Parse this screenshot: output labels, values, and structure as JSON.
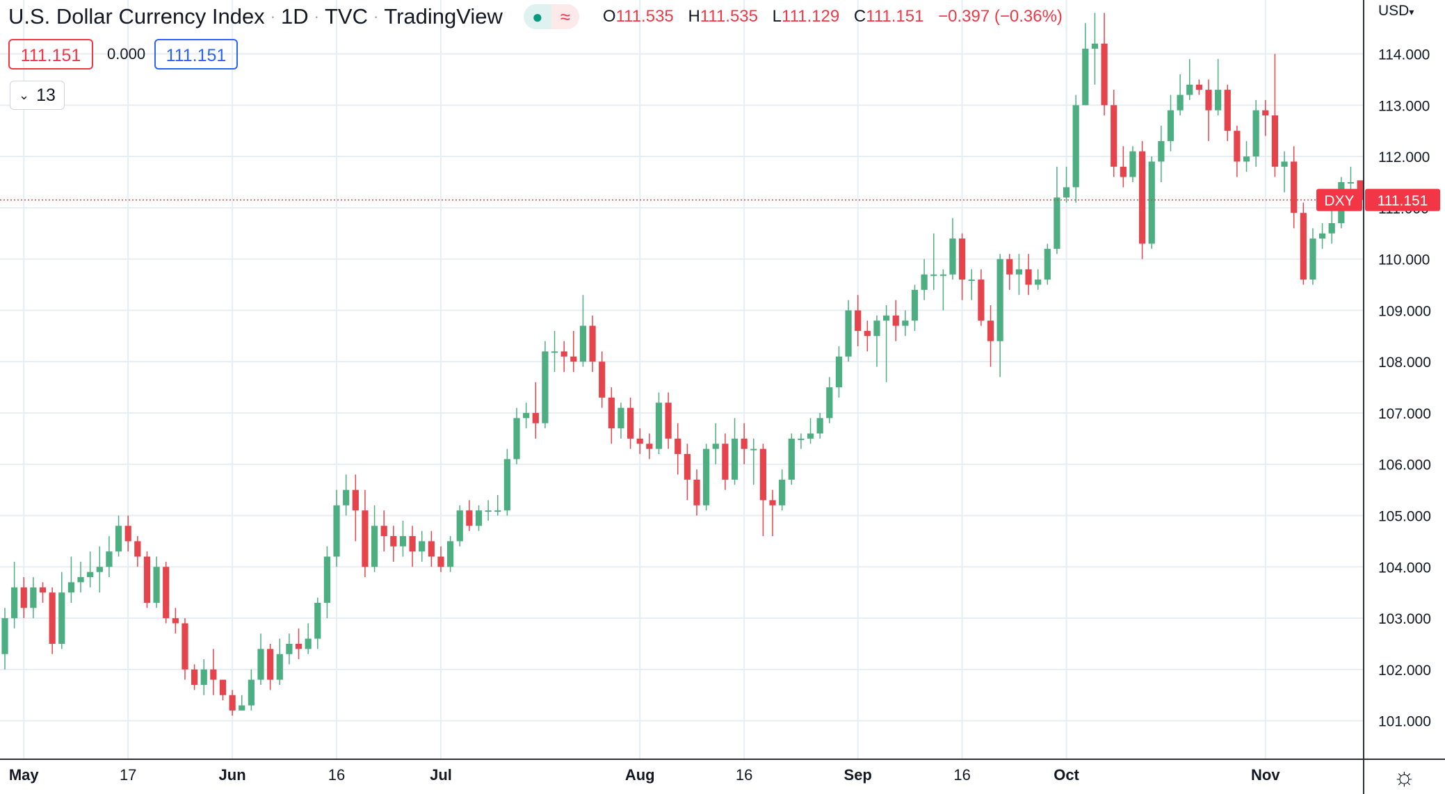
{
  "header": {
    "title": "U.S. Dollar Currency Index",
    "interval": "1D",
    "exchange": "TVC",
    "source": "TradingView",
    "live_icon": "●",
    "delayed_icon": "≈",
    "open_label": "O",
    "open": "111.535",
    "high_label": "H",
    "high": "111.535",
    "low_label": "L",
    "low": "111.129",
    "close_label": "C",
    "close": "111.151",
    "change": "−0.397 (−0.36%)"
  },
  "trade": {
    "sell": "111.151",
    "spread": "0.000",
    "buy": "111.151"
  },
  "indicators": {
    "chevron_icon": "chevron-down-icon",
    "count": "13"
  },
  "axis": {
    "currency_label": "USD",
    "settings_icon": "gear-icon"
  },
  "colors": {
    "up": "#4cae81",
    "down": "#e5444d",
    "grid": "#e6edf3",
    "last_price": "#f23645"
  },
  "chart_data": {
    "type": "candlestick",
    "title": "U.S. Dollar Currency Index · 1D · TVC",
    "symbol_label": "DXY",
    "last_price": "111.151",
    "y_ticks": [
      "101.000",
      "102.000",
      "103.000",
      "104.000",
      "105.000",
      "106.000",
      "107.000",
      "108.000",
      "109.000",
      "110.000",
      "111.000",
      "112.000",
      "113.000",
      "114.000"
    ],
    "ylim": [
      100.25,
      115.05
    ],
    "x_ticks": [
      {
        "label": "May",
        "idx": 2
      },
      {
        "label": "17",
        "idx": 13
      },
      {
        "label": "Jun",
        "idx": 24
      },
      {
        "label": "16",
        "idx": 35
      },
      {
        "label": "Jul",
        "idx": 46
      },
      {
        "label": "Aug",
        "idx": 67
      },
      {
        "label": "16",
        "idx": 78
      },
      {
        "label": "Sep",
        "idx": 90
      },
      {
        "label": "16",
        "idx": 101
      },
      {
        "label": "Oct",
        "idx": 112
      },
      {
        "label": "Nov",
        "idx": 133
      }
    ],
    "candles": [
      [
        102.3,
        103.0,
        103.2,
        102.0
      ],
      [
        103.0,
        103.6,
        104.1,
        102.8
      ],
      [
        103.6,
        103.2,
        103.8,
        103.0
      ],
      [
        103.2,
        103.6,
        103.8,
        103.0
      ],
      [
        103.6,
        103.5,
        103.7,
        103.3
      ],
      [
        103.5,
        102.5,
        103.6,
        102.3
      ],
      [
        102.5,
        103.5,
        103.9,
        102.4
      ],
      [
        103.5,
        103.7,
        104.2,
        103.3
      ],
      [
        103.7,
        103.8,
        104.1,
        103.5
      ],
      [
        103.8,
        103.9,
        104.3,
        103.6
      ],
      [
        103.9,
        104.0,
        104.4,
        103.5
      ],
      [
        104.0,
        104.3,
        104.6,
        103.8
      ],
      [
        104.3,
        104.8,
        105.0,
        104.2
      ],
      [
        104.8,
        104.5,
        105.0,
        104.3
      ],
      [
        104.5,
        104.2,
        104.6,
        104.0
      ],
      [
        104.2,
        103.3,
        104.3,
        103.2
      ],
      [
        103.3,
        104.0,
        104.2,
        103.2
      ],
      [
        104.0,
        103.0,
        104.1,
        102.9
      ],
      [
        103.0,
        102.9,
        103.2,
        102.7
      ],
      [
        102.9,
        102.0,
        103.0,
        101.8
      ],
      [
        102.0,
        101.7,
        102.1,
        101.6
      ],
      [
        101.7,
        102.0,
        102.2,
        101.5
      ],
      [
        102.0,
        101.8,
        102.4,
        101.5
      ],
      [
        101.8,
        101.5,
        101.8,
        101.4
      ],
      [
        101.5,
        101.2,
        101.6,
        101.1
      ],
      [
        101.2,
        101.3,
        101.5,
        101.2
      ],
      [
        101.3,
        101.8,
        102.0,
        101.2
      ],
      [
        101.8,
        102.4,
        102.7,
        101.7
      ],
      [
        102.4,
        101.8,
        102.5,
        101.6
      ],
      [
        101.8,
        102.3,
        102.6,
        101.7
      ],
      [
        102.3,
        102.5,
        102.7,
        102.1
      ],
      [
        102.5,
        102.4,
        102.8,
        102.2
      ],
      [
        102.4,
        102.6,
        102.9,
        102.3
      ],
      [
        102.6,
        103.3,
        103.4,
        102.4
      ],
      [
        103.3,
        104.2,
        104.4,
        103.0
      ],
      [
        104.2,
        105.2,
        105.5,
        104.0
      ],
      [
        105.2,
        105.5,
        105.8,
        105.0
      ],
      [
        105.5,
        105.1,
        105.8,
        104.5
      ],
      [
        105.1,
        104.0,
        105.5,
        103.8
      ],
      [
        104.0,
        104.8,
        105.2,
        103.9
      ],
      [
        104.8,
        104.6,
        105.1,
        104.3
      ],
      [
        104.6,
        104.4,
        104.8,
        104.1
      ],
      [
        104.4,
        104.6,
        104.9,
        104.2
      ],
      [
        104.6,
        104.3,
        104.8,
        104.0
      ],
      [
        104.3,
        104.5,
        104.7,
        104.1
      ],
      [
        104.5,
        104.2,
        104.7,
        104.0
      ],
      [
        104.2,
        104.0,
        104.4,
        103.9
      ],
      [
        104.0,
        104.5,
        104.6,
        103.9
      ],
      [
        104.5,
        105.1,
        105.2,
        104.4
      ],
      [
        105.1,
        104.8,
        105.3,
        104.7
      ],
      [
        104.8,
        105.1,
        105.2,
        104.7
      ],
      [
        105.1,
        105.1,
        105.3,
        104.9
      ],
      [
        105.1,
        105.1,
        105.4,
        105.0
      ],
      [
        105.1,
        106.1,
        106.3,
        105.0
      ],
      [
        106.1,
        106.9,
        107.1,
        106.0
      ],
      [
        106.9,
        107.0,
        107.2,
        106.7
      ],
      [
        107.0,
        106.8,
        107.6,
        106.5
      ],
      [
        106.8,
        108.2,
        108.4,
        106.7
      ],
      [
        108.2,
        108.2,
        108.6,
        107.8
      ],
      [
        108.2,
        108.1,
        108.4,
        107.8
      ],
      [
        108.1,
        108.0,
        108.6,
        107.8
      ],
      [
        108.0,
        108.7,
        109.3,
        107.9
      ],
      [
        108.7,
        108.0,
        108.9,
        107.8
      ],
      [
        108.0,
        107.3,
        108.2,
        107.1
      ],
      [
        107.3,
        106.7,
        107.5,
        106.4
      ],
      [
        106.7,
        107.1,
        107.2,
        106.5
      ],
      [
        107.1,
        106.5,
        107.3,
        106.3
      ],
      [
        106.5,
        106.4,
        106.7,
        106.2
      ],
      [
        106.4,
        106.3,
        106.6,
        106.1
      ],
      [
        106.3,
        107.2,
        107.4,
        106.2
      ],
      [
        107.2,
        106.5,
        107.4,
        106.3
      ],
      [
        106.5,
        106.2,
        106.8,
        105.8
      ],
      [
        106.2,
        105.7,
        106.4,
        105.3
      ],
      [
        105.7,
        105.2,
        105.9,
        105.0
      ],
      [
        105.2,
        106.3,
        106.4,
        105.1
      ],
      [
        106.3,
        106.4,
        106.8,
        106.0
      ],
      [
        106.4,
        105.7,
        106.6,
        105.5
      ],
      [
        105.7,
        106.5,
        106.9,
        105.6
      ],
      [
        106.5,
        106.3,
        106.8,
        106.0
      ],
      [
        106.3,
        106.3,
        106.5,
        105.6
      ],
      [
        106.3,
        105.3,
        106.4,
        104.6
      ],
      [
        105.3,
        105.2,
        105.5,
        104.6
      ],
      [
        105.2,
        105.7,
        105.9,
        105.1
      ],
      [
        105.7,
        106.5,
        106.6,
        105.6
      ],
      [
        106.5,
        106.5,
        106.6,
        106.3
      ],
      [
        106.5,
        106.6,
        106.9,
        106.4
      ],
      [
        106.6,
        106.9,
        107.0,
        106.5
      ],
      [
        106.9,
        107.5,
        107.7,
        106.8
      ],
      [
        107.5,
        108.1,
        108.3,
        107.3
      ],
      [
        108.1,
        109.0,
        109.2,
        108.0
      ],
      [
        109.0,
        108.6,
        109.3,
        108.3
      ],
      [
        108.6,
        108.5,
        108.8,
        108.2
      ],
      [
        108.5,
        108.8,
        108.9,
        107.9
      ],
      [
        108.8,
        108.9,
        109.1,
        107.6
      ],
      [
        108.9,
        108.7,
        109.2,
        108.4
      ],
      [
        108.7,
        108.8,
        109.0,
        108.5
      ],
      [
        108.8,
        109.4,
        109.5,
        108.6
      ],
      [
        109.4,
        109.7,
        110.0,
        109.2
      ],
      [
        109.7,
        109.7,
        110.5,
        109.4
      ],
      [
        109.7,
        109.7,
        109.8,
        109.0
      ],
      [
        109.7,
        110.4,
        110.8,
        109.6
      ],
      [
        110.4,
        109.6,
        110.5,
        109.2
      ],
      [
        109.6,
        109.6,
        109.8,
        109.2
      ],
      [
        109.6,
        108.8,
        109.8,
        108.7
      ],
      [
        108.8,
        108.4,
        109.1,
        107.9
      ],
      [
        108.4,
        110.0,
        110.1,
        107.7
      ],
      [
        110.0,
        109.7,
        110.1,
        109.4
      ],
      [
        109.7,
        109.8,
        110.1,
        109.3
      ],
      [
        109.8,
        109.5,
        110.1,
        109.3
      ],
      [
        109.5,
        109.6,
        109.8,
        109.4
      ],
      [
        109.6,
        110.2,
        110.3,
        109.5
      ],
      [
        110.2,
        111.2,
        111.8,
        110.1
      ],
      [
        111.2,
        111.4,
        111.8,
        111.1
      ],
      [
        111.4,
        113.0,
        113.2,
        111.1
      ],
      [
        113.0,
        114.1,
        114.6,
        113.0
      ],
      [
        114.1,
        114.2,
        114.8,
        113.4
      ],
      [
        114.2,
        113.0,
        114.8,
        112.8
      ],
      [
        113.0,
        111.8,
        113.3,
        111.6
      ],
      [
        111.8,
        111.6,
        112.2,
        111.4
      ],
      [
        111.6,
        112.1,
        112.2,
        111.5
      ],
      [
        112.1,
        110.3,
        112.3,
        110.0
      ],
      [
        110.3,
        111.9,
        112.0,
        110.2
      ],
      [
        111.9,
        112.3,
        112.6,
        111.5
      ],
      [
        112.3,
        112.9,
        113.2,
        112.1
      ],
      [
        112.9,
        113.2,
        113.6,
        112.8
      ],
      [
        113.2,
        113.4,
        113.9,
        113.1
      ],
      [
        113.4,
        113.3,
        113.5,
        113.2
      ],
      [
        113.3,
        112.9,
        113.5,
        112.3
      ],
      [
        112.9,
        113.3,
        113.9,
        112.8
      ],
      [
        113.3,
        112.5,
        113.4,
        112.3
      ],
      [
        112.5,
        111.9,
        112.6,
        111.6
      ],
      [
        111.9,
        112.0,
        112.3,
        111.7
      ],
      [
        112.0,
        112.9,
        113.1,
        111.8
      ],
      [
        112.9,
        112.8,
        113.1,
        112.4
      ],
      [
        112.8,
        111.8,
        114.0,
        111.6
      ],
      [
        111.8,
        111.9,
        112.1,
        111.3
      ],
      [
        111.9,
        110.9,
        112.2,
        110.6
      ],
      [
        110.9,
        109.6,
        111.1,
        109.5
      ],
      [
        109.6,
        110.4,
        110.6,
        109.5
      ],
      [
        110.4,
        110.5,
        110.7,
        110.2
      ],
      [
        110.5,
        110.7,
        111.3,
        110.3
      ],
      [
        110.7,
        111.5,
        111.6,
        110.6
      ],
      [
        111.5,
        111.5,
        111.8,
        111.3
      ],
      [
        111.535,
        111.151,
        111.535,
        111.129
      ]
    ]
  }
}
